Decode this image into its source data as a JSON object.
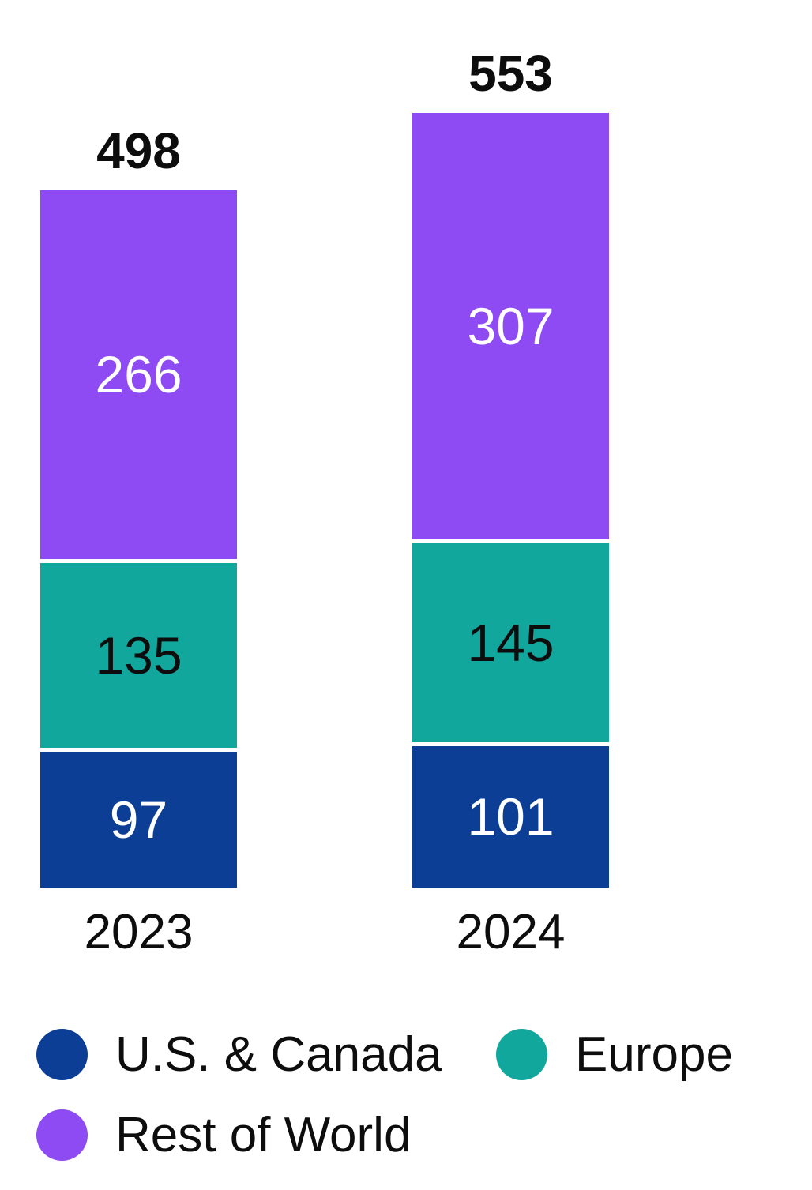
{
  "chart_data": {
    "type": "bar",
    "stacked": true,
    "title": "",
    "xlabel": "",
    "ylabel": "",
    "grid": false,
    "legend_position": "bottom",
    "background_color": "#FFFFFF",
    "text_color": "#0D0D0D",
    "categories": [
      "2023",
      "2024"
    ],
    "totals": [
      498,
      553
    ],
    "series": [
      {
        "name": "U.S. & Canada",
        "color": "#0B3E94",
        "label_color": "#FFFFFF",
        "values": [
          97,
          101
        ]
      },
      {
        "name": "Europe",
        "color": "#12A79D",
        "label_color": "#0D0D0D",
        "values": [
          135,
          145
        ]
      },
      {
        "name": "Rest of World",
        "color": "#8E4BF3",
        "label_color": "#FFFFFF",
        "values": [
          266,
          307
        ]
      }
    ]
  }
}
